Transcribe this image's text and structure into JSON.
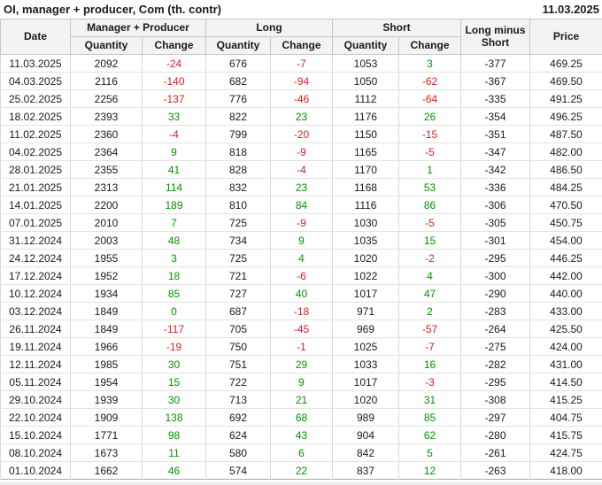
{
  "title": "OI, manager + producer, Com (th. contr)",
  "report_date": "11.03.2025",
  "colors": {
    "negative": "#d32222",
    "positive": "#009400",
    "header_bg": "#f3f3f3"
  },
  "table": {
    "column_groups": {
      "manager_producer": "Manager + Producer",
      "long": "Long",
      "short": "Short"
    },
    "columns": {
      "date": "Date",
      "quantity": "Quantity",
      "change": "Change",
      "long_minus_short": "Long minus Short",
      "price": "Price"
    },
    "rows": [
      {
        "date": "11.03.2025",
        "mp_qty": "2092",
        "mp_chg": "-24",
        "long_qty": "676",
        "long_chg": "-7",
        "short_qty": "1053",
        "short_chg": "3",
        "long_minus_short": "-377",
        "price": "469.25"
      },
      {
        "date": "04.03.2025",
        "mp_qty": "2116",
        "mp_chg": "-140",
        "long_qty": "682",
        "long_chg": "-94",
        "short_qty": "1050",
        "short_chg": "-62",
        "long_minus_short": "-367",
        "price": "469.50"
      },
      {
        "date": "25.02.2025",
        "mp_qty": "2256",
        "mp_chg": "-137",
        "long_qty": "776",
        "long_chg": "-46",
        "short_qty": "1112",
        "short_chg": "-64",
        "long_minus_short": "-335",
        "price": "491.25"
      },
      {
        "date": "18.02.2025",
        "mp_qty": "2393",
        "mp_chg": "33",
        "long_qty": "822",
        "long_chg": "23",
        "short_qty": "1176",
        "short_chg": "26",
        "long_minus_short": "-354",
        "price": "496.25"
      },
      {
        "date": "11.02.2025",
        "mp_qty": "2360",
        "mp_chg": "-4",
        "long_qty": "799",
        "long_chg": "-20",
        "short_qty": "1150",
        "short_chg": "-15",
        "long_minus_short": "-351",
        "price": "487.50"
      },
      {
        "date": "04.02.2025",
        "mp_qty": "2364",
        "mp_chg": "9",
        "long_qty": "818",
        "long_chg": "-9",
        "short_qty": "1165",
        "short_chg": "-5",
        "long_minus_short": "-347",
        "price": "482.00"
      },
      {
        "date": "28.01.2025",
        "mp_qty": "2355",
        "mp_chg": "41",
        "long_qty": "828",
        "long_chg": "-4",
        "short_qty": "1170",
        "short_chg": "1",
        "long_minus_short": "-342",
        "price": "486.50"
      },
      {
        "date": "21.01.2025",
        "mp_qty": "2313",
        "mp_chg": "114",
        "long_qty": "832",
        "long_chg": "23",
        "short_qty": "1168",
        "short_chg": "53",
        "long_minus_short": "-336",
        "price": "484.25"
      },
      {
        "date": "14.01.2025",
        "mp_qty": "2200",
        "mp_chg": "189",
        "long_qty": "810",
        "long_chg": "84",
        "short_qty": "1116",
        "short_chg": "86",
        "long_minus_short": "-306",
        "price": "470.50"
      },
      {
        "date": "07.01.2025",
        "mp_qty": "2010",
        "mp_chg": "7",
        "long_qty": "725",
        "long_chg": "-9",
        "short_qty": "1030",
        "short_chg": "-5",
        "long_minus_short": "-305",
        "price": "450.75"
      },
      {
        "date": "31.12.2024",
        "mp_qty": "2003",
        "mp_chg": "48",
        "long_qty": "734",
        "long_chg": "9",
        "short_qty": "1035",
        "short_chg": "15",
        "long_minus_short": "-301",
        "price": "454.00"
      },
      {
        "date": "24.12.2024",
        "mp_qty": "1955",
        "mp_chg": "3",
        "long_qty": "725",
        "long_chg": "4",
        "short_qty": "1020",
        "short_chg": "-2",
        "long_minus_short": "-295",
        "price": "446.25"
      },
      {
        "date": "17.12.2024",
        "mp_qty": "1952",
        "mp_chg": "18",
        "long_qty": "721",
        "long_chg": "-6",
        "short_qty": "1022",
        "short_chg": "4",
        "long_minus_short": "-300",
        "price": "442.00"
      },
      {
        "date": "10.12.2024",
        "mp_qty": "1934",
        "mp_chg": "85",
        "long_qty": "727",
        "long_chg": "40",
        "short_qty": "1017",
        "short_chg": "47",
        "long_minus_short": "-290",
        "price": "440.00"
      },
      {
        "date": "03.12.2024",
        "mp_qty": "1849",
        "mp_chg": "0",
        "long_qty": "687",
        "long_chg": "-18",
        "short_qty": "971",
        "short_chg": "2",
        "long_minus_short": "-283",
        "price": "433.00"
      },
      {
        "date": "26.11.2024",
        "mp_qty": "1849",
        "mp_chg": "-117",
        "long_qty": "705",
        "long_chg": "-45",
        "short_qty": "969",
        "short_chg": "-57",
        "long_minus_short": "-264",
        "price": "425.50"
      },
      {
        "date": "19.11.2024",
        "mp_qty": "1966",
        "mp_chg": "-19",
        "long_qty": "750",
        "long_chg": "-1",
        "short_qty": "1025",
        "short_chg": "-7",
        "long_minus_short": "-275",
        "price": "424.00"
      },
      {
        "date": "12.11.2024",
        "mp_qty": "1985",
        "mp_chg": "30",
        "long_qty": "751",
        "long_chg": "29",
        "short_qty": "1033",
        "short_chg": "16",
        "long_minus_short": "-282",
        "price": "431.00"
      },
      {
        "date": "05.11.2024",
        "mp_qty": "1954",
        "mp_chg": "15",
        "long_qty": "722",
        "long_chg": "9",
        "short_qty": "1017",
        "short_chg": "-3",
        "long_minus_short": "-295",
        "price": "414.50"
      },
      {
        "date": "29.10.2024",
        "mp_qty": "1939",
        "mp_chg": "30",
        "long_qty": "713",
        "long_chg": "21",
        "short_qty": "1020",
        "short_chg": "31",
        "long_minus_short": "-308",
        "price": "415.25"
      },
      {
        "date": "22.10.2024",
        "mp_qty": "1909",
        "mp_chg": "138",
        "long_qty": "692",
        "long_chg": "68",
        "short_qty": "989",
        "short_chg": "85",
        "long_minus_short": "-297",
        "price": "404.75"
      },
      {
        "date": "15.10.2024",
        "mp_qty": "1771",
        "mp_chg": "98",
        "long_qty": "624",
        "long_chg": "43",
        "short_qty": "904",
        "short_chg": "62",
        "long_minus_short": "-280",
        "price": "415.75"
      },
      {
        "date": "08.10.2024",
        "mp_qty": "1673",
        "mp_chg": "11",
        "long_qty": "580",
        "long_chg": "6",
        "short_qty": "842",
        "short_chg": "5",
        "long_minus_short": "-261",
        "price": "424.75"
      },
      {
        "date": "01.10.2024",
        "mp_qty": "1662",
        "mp_chg": "46",
        "long_qty": "574",
        "long_chg": "22",
        "short_qty": "837",
        "short_chg": "12",
        "long_minus_short": "-263",
        "price": "418.00"
      }
    ]
  }
}
